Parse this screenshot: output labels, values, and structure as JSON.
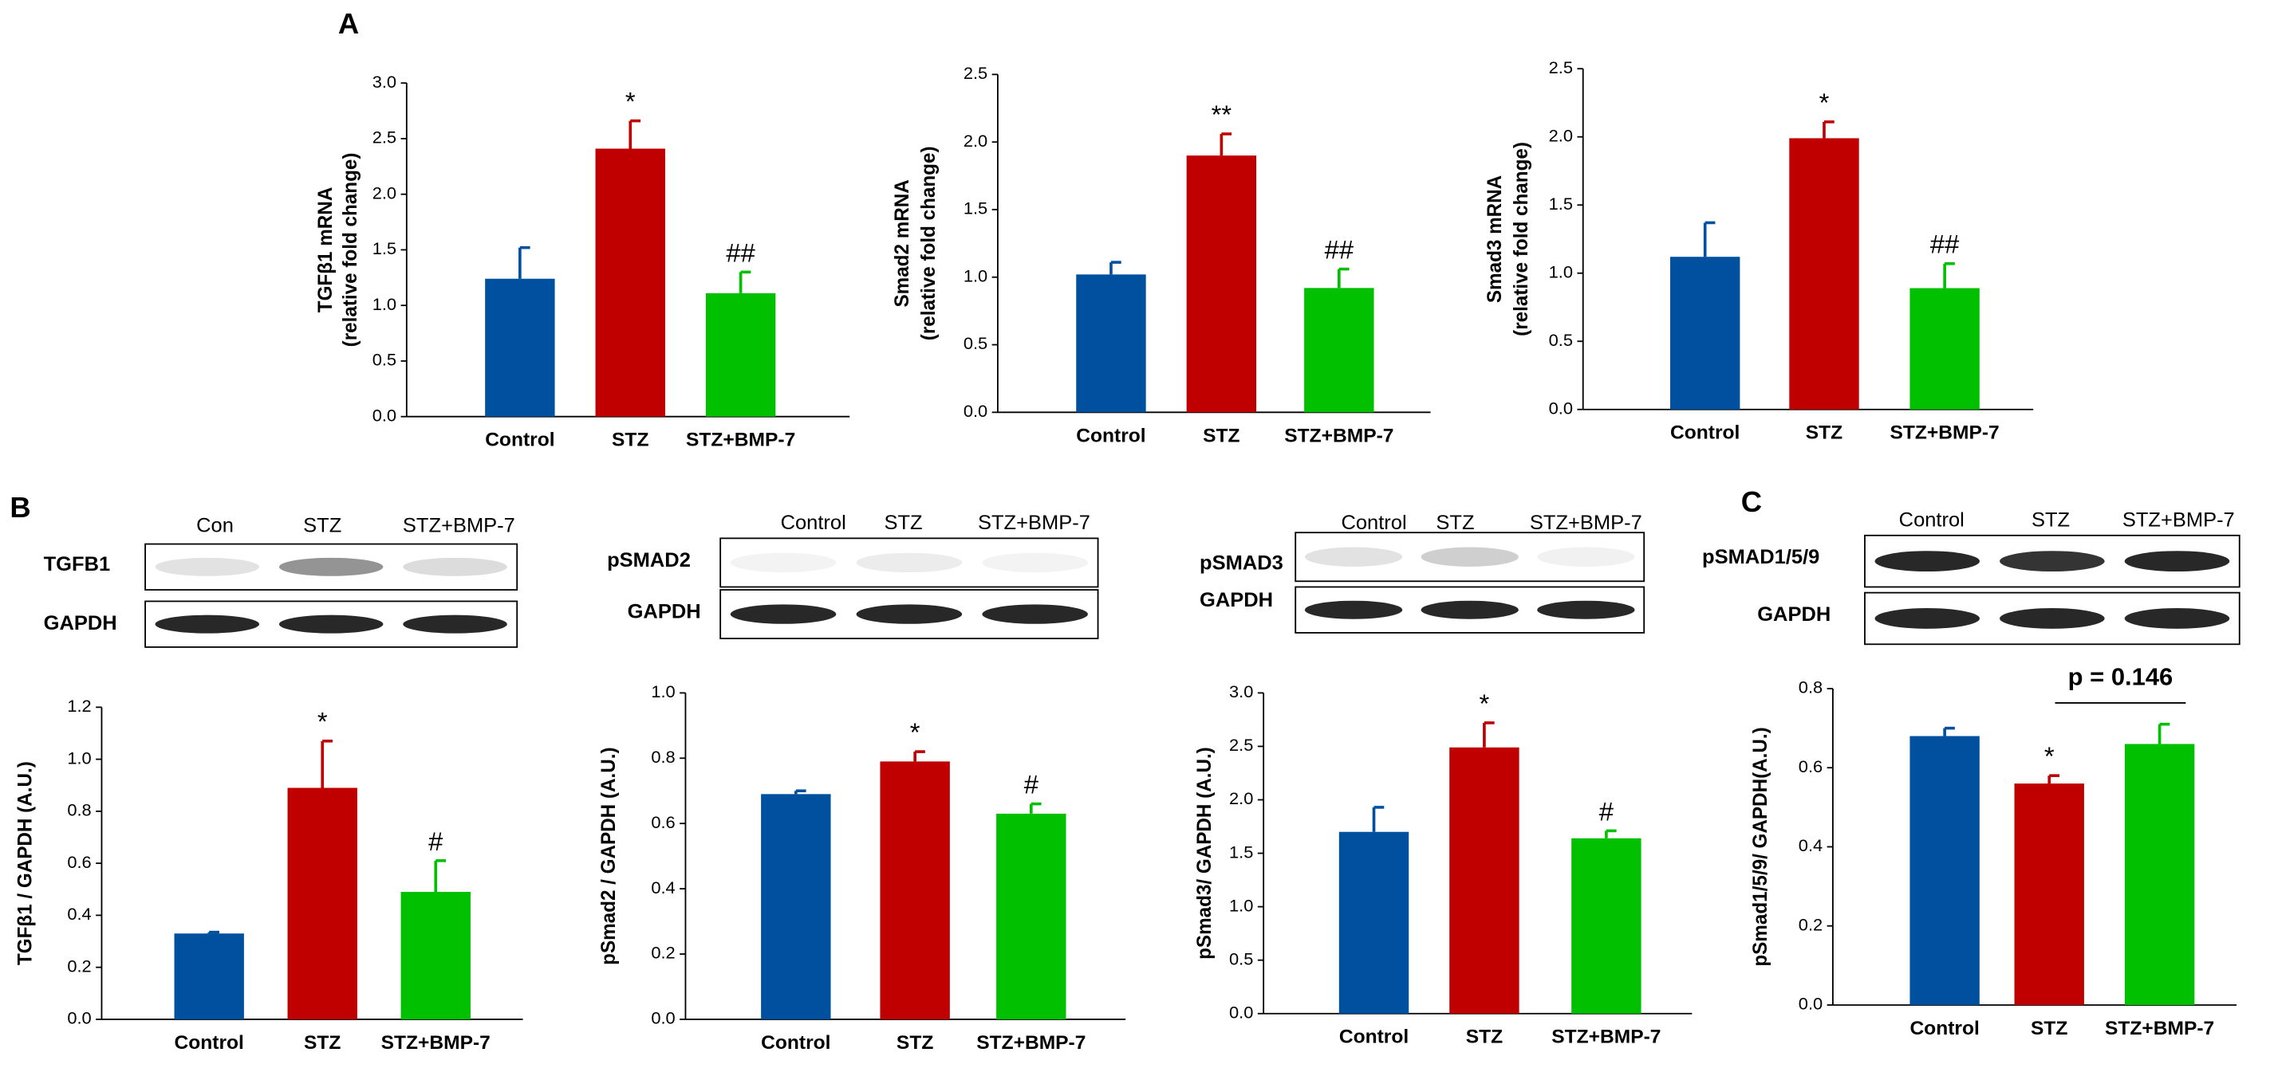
{
  "panel_labels": [
    "A",
    "B",
    "C"
  ],
  "blots": [
    {
      "lanes": [
        "Con",
        "STZ",
        "STZ+BMP-7"
      ],
      "rows": [
        "TGFB1",
        "GAPDH"
      ]
    },
    {
      "lanes": [
        "Control",
        "STZ",
        "STZ+BMP-7"
      ],
      "rows": [
        "pSMAD2",
        "GAPDH"
      ]
    },
    {
      "lanes": [
        "Control",
        "STZ",
        "STZ+BMP-7"
      ],
      "rows": [
        "pSMAD3",
        "GAPDH"
      ]
    },
    {
      "lanes": [
        "Control",
        "STZ",
        "STZ+BMP-7"
      ],
      "rows": [
        "pSMAD1/5/9",
        "GAPDH"
      ]
    }
  ],
  "chart_data": [
    {
      "type": "bar",
      "ylabel": [
        "TGFβ1  mRNA",
        "(relative fold change)"
      ],
      "categories": [
        "Control",
        "STZ",
        "STZ+BMP-7"
      ],
      "values": [
        1.24,
        2.41,
        1.11
      ],
      "errors": [
        0.28,
        0.25,
        0.19
      ],
      "colors": [
        "#0050a0",
        "#c00000",
        "#00c000"
      ],
      "annotations": [
        null,
        "*",
        "##"
      ],
      "ylim": [
        0,
        3
      ],
      "yticks": [
        {
          "value": 0,
          "label": "0.0"
        },
        0.5,
        {
          "value": 1,
          "label": "1.0"
        },
        1.5,
        {
          "value": 2,
          "label": "2.0"
        },
        2.5,
        {
          "value": 3,
          "label": "3.0"
        }
      ]
    },
    {
      "type": "bar",
      "ylabel": [
        "Smad2  mRNA",
        "(relative fold change)"
      ],
      "categories": [
        "Control",
        "STZ",
        "STZ+BMP-7"
      ],
      "values": [
        1.02,
        1.9,
        0.92
      ],
      "errors": [
        0.09,
        0.16,
        0.14
      ],
      "colors": [
        "#0050a0",
        "#c00000",
        "#00c000"
      ],
      "annotations": [
        null,
        "**",
        "##"
      ],
      "ylim": [
        0,
        2.5
      ],
      "yticks": [
        {
          "value": 0,
          "label": "0.0"
        },
        0.5,
        {
          "value": 1,
          "label": "1.0"
        },
        1.5,
        {
          "value": 2,
          "label": "2.0"
        },
        2.5
      ]
    },
    {
      "type": "bar",
      "ylabel": [
        "Smad3  mRNA",
        "(relative fold change)"
      ],
      "categories": [
        "Control",
        "STZ",
        "STZ+BMP-7"
      ],
      "values": [
        1.12,
        1.99,
        0.89
      ],
      "errors": [
        0.25,
        0.12,
        0.18
      ],
      "colors": [
        "#0050a0",
        "#c00000",
        "#00c000"
      ],
      "annotations": [
        null,
        "*",
        "##"
      ],
      "ylim": [
        0,
        2.5
      ],
      "yticks": [
        {
          "value": 0,
          "label": "0.0"
        },
        0.5,
        {
          "value": 1,
          "label": "1.0"
        },
        1.5,
        {
          "value": 2,
          "label": "2.0"
        },
        2.5
      ]
    },
    {
      "type": "bar",
      "ylabel": "TGFβ1 / GAPDH (A.U.)",
      "categories": [
        "Control",
        "STZ",
        "STZ+BMP-7"
      ],
      "values": [
        0.33,
        0.89,
        0.49
      ],
      "errors": [
        0.005,
        0.18,
        0.12
      ],
      "colors": [
        "#0050a0",
        "#c00000",
        "#00c000"
      ],
      "annotations": [
        null,
        "*",
        "#"
      ],
      "ylim": [
        0,
        1.2
      ],
      "yticks": [
        {
          "value": 0,
          "label": "0.0"
        },
        0.2,
        0.4,
        0.6,
        0.8,
        {
          "value": 1,
          "label": "1.0"
        },
        1.2
      ]
    },
    {
      "type": "bar",
      "ylabel": "pSmad2 / GAPDH (A.U.)",
      "categories": [
        "Control",
        "STZ",
        "STZ+BMP-7"
      ],
      "values": [
        0.69,
        0.79,
        0.63
      ],
      "errors": [
        0.01,
        0.03,
        0.03
      ],
      "colors": [
        "#0050a0",
        "#c00000",
        "#00c000"
      ],
      "annotations": [
        null,
        "*",
        "#"
      ],
      "ylim": [
        0,
        1
      ],
      "yticks": [
        {
          "value": 0,
          "label": "0.0"
        },
        0.2,
        0.4,
        0.6,
        0.8,
        {
          "value": 1,
          "label": "1.0"
        }
      ]
    },
    {
      "type": "bar",
      "ylabel": "pSmad3/ GAPDH (A.U.)",
      "categories": [
        "Control",
        "STZ",
        "STZ+BMP-7"
      ],
      "values": [
        1.7,
        2.49,
        1.64
      ],
      "errors": [
        0.23,
        0.23,
        0.07
      ],
      "colors": [
        "#0050a0",
        "#c00000",
        "#00c000"
      ],
      "annotations": [
        null,
        "*",
        "#"
      ],
      "ylim": [
        0,
        3
      ],
      "yticks": [
        {
          "value": 0,
          "label": "0.0"
        },
        0.5,
        {
          "value": 1,
          "label": "1.0"
        },
        1.5,
        {
          "value": 2,
          "label": "2.0"
        },
        2.5,
        {
          "value": 3,
          "label": "3.0"
        }
      ]
    },
    {
      "type": "bar",
      "ylabel": "pSmad1/5/9/ GAPDH(A.U.)",
      "categories": [
        "Control",
        "STZ",
        "STZ+BMP-7"
      ],
      "values": [
        0.68,
        0.56,
        0.66
      ],
      "errors": [
        0.02,
        0.02,
        0.05
      ],
      "colors": [
        "#0050a0",
        "#c00000",
        "#00c000"
      ],
      "annotations": [
        null,
        "*",
        null
      ],
      "comparison": "p = 0.146",
      "ylim": [
        0,
        0.8
      ],
      "yticks": [
        {
          "value": 0,
          "label": "0.0"
        },
        0.2,
        0.4,
        0.6,
        0.8
      ]
    }
  ]
}
